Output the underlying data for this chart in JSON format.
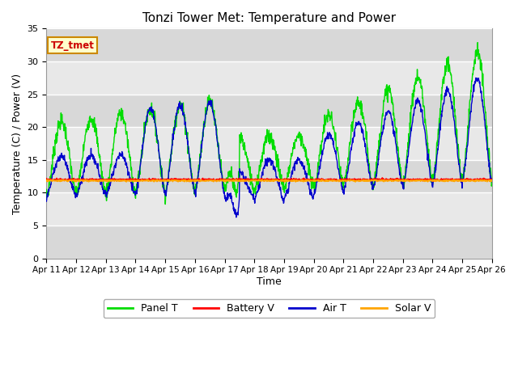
{
  "title": "Tonzi Tower Met: Temperature and Power",
  "xlabel": "Time",
  "ylabel": "Temperature (C) / Power (V)",
  "annotation": "TZ_tmet",
  "ylim": [
    0,
    35
  ],
  "x_tick_labels": [
    "Apr 11",
    "Apr 12",
    "Apr 13",
    "Apr 14",
    "Apr 15",
    "Apr 16",
    "Apr 17",
    "Apr 18",
    "Apr 19",
    "Apr 20",
    "Apr 21",
    "Apr 22",
    "Apr 23",
    "Apr 24",
    "Apr 25",
    "Apr 26"
  ],
  "panel_t_color": "#00DD00",
  "battery_v_color": "#FF0000",
  "air_t_color": "#0000CC",
  "solar_v_color": "#FFA500",
  "plot_bg_color": "#E8E8E8",
  "legend_labels": [
    "Panel T",
    "Battery V",
    "Air T",
    "Solar V"
  ],
  "annotation_bg": "#FFFFCC",
  "annotation_border": "#CC8800",
  "annotation_text_color": "#CC0000"
}
